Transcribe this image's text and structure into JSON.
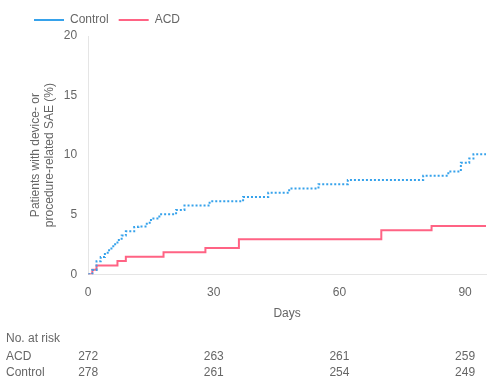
{
  "chart_data": {
    "type": "step",
    "xlabel": "Days",
    "ylabel": "Patients with device- or\nprocedure-related SAE (%)",
    "xlim": [
      0,
      95
    ],
    "xticks": [
      0,
      30,
      60,
      90
    ],
    "ylim": [
      0,
      20
    ],
    "yticks": [
      0,
      5,
      10,
      15,
      20
    ],
    "grid": false,
    "legend": "upper left",
    "series": [
      {
        "name": "Control",
        "line_style": "dotted",
        "x": [
          0,
          1,
          2,
          3,
          4,
          5,
          6,
          7,
          8,
          9,
          10,
          11,
          12,
          13,
          14,
          15,
          16,
          17,
          18,
          19,
          20,
          21,
          22,
          23,
          24,
          25,
          26,
          27,
          28,
          29,
          30,
          31,
          32,
          33,
          34,
          35,
          36,
          37,
          38,
          39,
          40,
          41,
          42,
          43,
          44,
          45,
          46,
          47,
          48,
          49,
          50,
          51,
          52,
          53,
          54,
          55,
          56,
          57,
          58,
          59,
          60,
          61,
          62,
          63,
          64,
          65,
          66,
          67,
          68,
          69,
          70,
          71,
          72,
          73,
          74,
          75,
          76,
          77,
          78,
          80,
          82,
          84,
          85,
          86,
          87,
          88,
          89,
          90,
          91,
          92,
          93,
          95
        ],
        "values": [
          0,
          0.36,
          1.08,
          1.44,
          1.8,
          2.16,
          2.52,
          2.88,
          3.24,
          3.6,
          3.6,
          3.96,
          4.0,
          4.0,
          4.32,
          4.68,
          4.68,
          5.04,
          5.04,
          5.04,
          5.04,
          5.4,
          5.4,
          5.76,
          5.76,
          5.76,
          5.76,
          5.76,
          5.76,
          6.12,
          6.12,
          6.12,
          6.12,
          6.12,
          6.12,
          6.12,
          6.12,
          6.48,
          6.48,
          6.48,
          6.48,
          6.48,
          6.48,
          6.84,
          6.84,
          6.84,
          6.84,
          6.84,
          7.19,
          7.19,
          7.19,
          7.19,
          7.19,
          7.19,
          7.19,
          7.55,
          7.55,
          7.55,
          7.55,
          7.55,
          7.55,
          7.55,
          7.91,
          7.91,
          7.91,
          7.91,
          7.91,
          7.91,
          7.91,
          7.91,
          7.91,
          7.91,
          7.91,
          7.91,
          7.91,
          7.91,
          7.91,
          7.91,
          7.91,
          8.27,
          8.27,
          8.27,
          8.27,
          8.63,
          8.63,
          8.63,
          9.35,
          9.35,
          9.71,
          10.07,
          10.07,
          10.07
        ]
      },
      {
        "name": "ACD",
        "line_style": "solid",
        "x": [
          0,
          1,
          2,
          4,
          7,
          9,
          14,
          18,
          28,
          36,
          55,
          70,
          82,
          88,
          95
        ],
        "values": [
          0,
          0.37,
          0.74,
          0.74,
          1.1,
          1.47,
          1.47,
          1.84,
          2.21,
          2.94,
          2.94,
          3.68,
          4.04,
          4.04,
          4.04
        ]
      }
    ],
    "risk_table": {
      "title": "No. at risk",
      "x": [
        0,
        30,
        60,
        90
      ],
      "rows": [
        {
          "name": "ACD",
          "values": [
            272,
            263,
            261,
            259
          ]
        },
        {
          "name": "Control",
          "values": [
            278,
            261,
            254,
            249
          ]
        }
      ]
    }
  }
}
